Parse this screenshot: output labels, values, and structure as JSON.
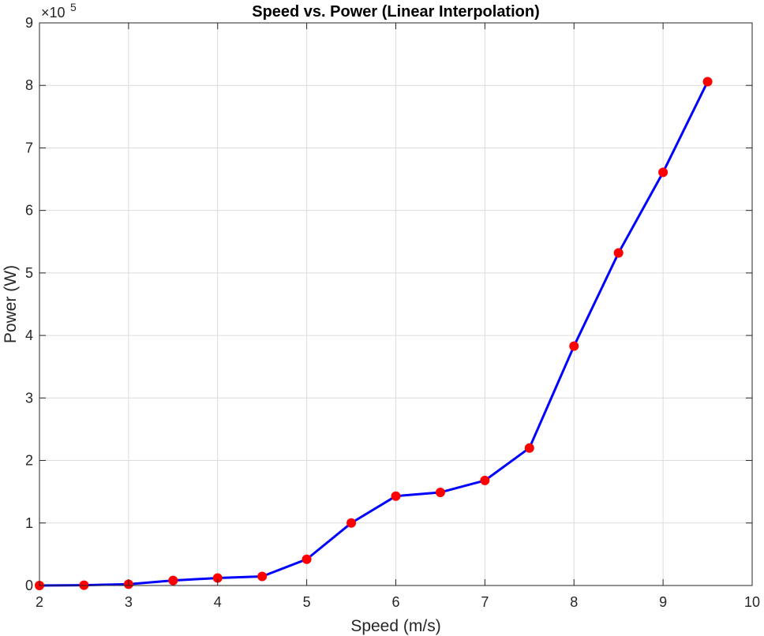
{
  "chart_data": {
    "type": "line",
    "title": "Speed vs. Power (Linear Interpolation)",
    "xlabel": "Speed (m/s)",
    "ylabel": "Power (W)",
    "y_exponent_base": "×10",
    "y_exponent_power": "5",
    "xlim": [
      2,
      10
    ],
    "ylim": [
      0,
      9
    ],
    "x_ticks": [
      2,
      3,
      4,
      5,
      6,
      7,
      8,
      9,
      10
    ],
    "y_ticks": [
      0,
      1,
      2,
      3,
      4,
      5,
      6,
      7,
      8,
      9
    ],
    "grid": true,
    "series": [
      {
        "line_color": "#0000ff",
        "marker_color": "#ff0000",
        "x": [
          2,
          2.5,
          3,
          3.5,
          4,
          4.5,
          5,
          5.5,
          6,
          6.5,
          7,
          7.5,
          8,
          8.5,
          9,
          9.5
        ],
        "values": [
          0.0,
          0.005,
          0.02,
          0.08,
          0.12,
          0.145,
          0.42,
          1.0,
          1.43,
          1.49,
          1.68,
          2.2,
          3.83,
          5.32,
          6.61,
          8.06
        ]
      }
    ]
  }
}
